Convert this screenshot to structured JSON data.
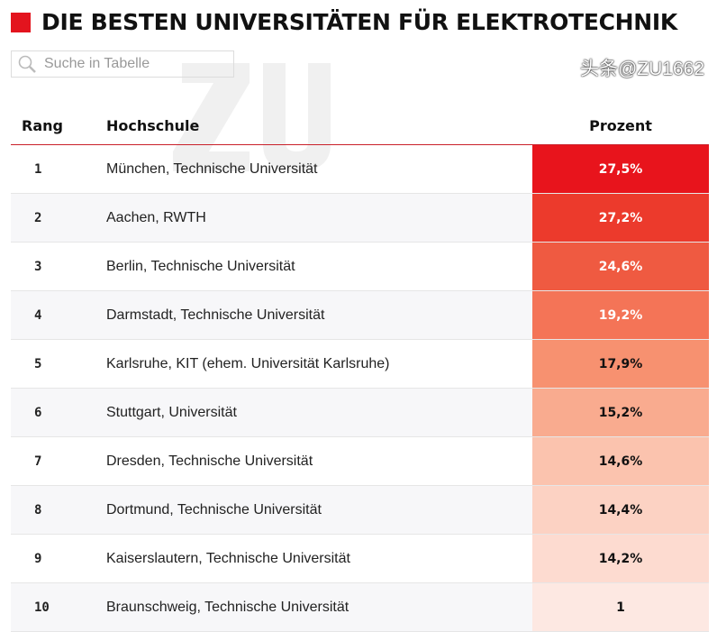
{
  "title": "DIE BESTEN UNIVERSITÄTEN FÜR ELEKTROTECHNIK",
  "accent": "#e3141e",
  "search": {
    "placeholder": "Suche in Tabelle",
    "icon": "search-icon"
  },
  "watermark_logo": "ZU",
  "overlay_watermark": "头条@ZU1662",
  "columns": {
    "rank": "Rang",
    "school": "Hochschule",
    "percent": "Prozent"
  },
  "rows": [
    {
      "rank": "1",
      "school": "München, Technische Universität",
      "percent": "27,5%",
      "color": "#e8141c",
      "text": "#fff"
    },
    {
      "rank": "2",
      "school": "Aachen, RWTH",
      "percent": "27,2%",
      "color": "#ec3a2c",
      "text": "#fff"
    },
    {
      "rank": "3",
      "school": "Berlin, Technische Universität",
      "percent": "24,6%",
      "color": "#ef5a41",
      "text": "#fff"
    },
    {
      "rank": "4",
      "school": "Darmstadt, Technische Universität",
      "percent": "19,2%",
      "color": "#f47457",
      "text": "#fff"
    },
    {
      "rank": "5",
      "school": "Karlsruhe, KIT (ehem. Universität Karlsruhe)",
      "percent": "17,9%",
      "color": "#f79170",
      "text": "#111"
    },
    {
      "rank": "6",
      "school": "Stuttgart, Universität",
      "percent": "15,2%",
      "color": "#f9ab8f",
      "text": "#111"
    },
    {
      "rank": "7",
      "school": "Dresden, Technische Universität",
      "percent": "14,6%",
      "color": "#fbc3ae",
      "text": "#111"
    },
    {
      "rank": "8",
      "school": "Dortmund, Technische Universität",
      "percent": "14,4%",
      "color": "#fcd2c3",
      "text": "#111"
    },
    {
      "rank": "9",
      "school": "Kaiserslautern, Technische Universität",
      "percent": "14,2%",
      "color": "#fddbd0",
      "text": "#111"
    },
    {
      "rank": "10",
      "school": "Braunschweig, Technische Universität",
      "percent": "1",
      "color": "#fde8e2",
      "text": "#111"
    }
  ]
}
